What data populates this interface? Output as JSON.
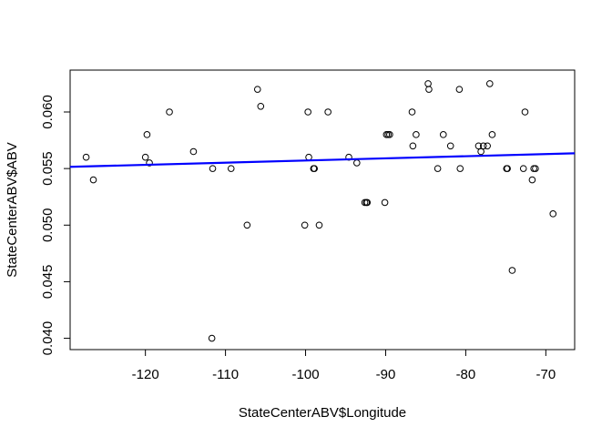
{
  "chart_data": {
    "type": "scatter",
    "title": "",
    "xlabel": "StateCenterABV$Longitude",
    "ylabel": "StateCenterABV$ABV",
    "xlim": [
      -129.4,
      -66.4
    ],
    "ylim": [
      0.039,
      0.0637
    ],
    "x_ticks": [
      -120,
      -110,
      -100,
      -90,
      -80,
      -70
    ],
    "x_tick_labels": [
      "-120",
      "-110",
      "-100",
      "-90",
      "-80",
      "-70"
    ],
    "y_ticks": [
      0.04,
      0.045,
      0.05,
      0.055,
      0.06
    ],
    "y_tick_labels": [
      "0.040",
      "0.045",
      "0.050",
      "0.055",
      "0.060"
    ],
    "grid": false,
    "legend": "none",
    "point_color": "#000000",
    "fit_line": {
      "color": "#0000ff",
      "x": [
        -129.4,
        -66.4
      ],
      "y": [
        0.05515,
        0.05635
      ]
    },
    "series": [
      {
        "x": [
          -127.4,
          -126.5,
          -120.0,
          -119.8,
          -119.5,
          -117.0,
          -114.0,
          -111.7,
          -111.6,
          -109.3,
          -107.3,
          -106.0,
          -105.6,
          -100.1,
          -99.7,
          -99.6,
          -99.0,
          -98.9,
          -98.3,
          -97.2,
          -94.6,
          -93.6,
          -92.6,
          -92.4,
          -92.3,
          -90.1,
          -89.9,
          -89.7,
          -89.5,
          -86.7,
          -86.6,
          -86.2,
          -84.7,
          -84.6,
          -83.5,
          -82.8,
          -81.9,
          -80.8,
          -80.7,
          -78.4,
          -78.1,
          -77.8,
          -77.3,
          -77.0,
          -76.7,
          -74.9,
          -74.8,
          -74.2,
          -72.8,
          -72.6,
          -71.7,
          -71.5,
          -71.3,
          -69.1
        ],
        "y": [
          0.056,
          0.054,
          0.056,
          0.058,
          0.0555,
          0.06,
          0.0565,
          0.04,
          0.055,
          0.055,
          0.05,
          0.062,
          0.0605,
          0.05,
          0.06,
          0.056,
          0.055,
          0.055,
          0.05,
          0.06,
          0.056,
          0.0555,
          0.052,
          0.052,
          0.052,
          0.052,
          0.058,
          0.058,
          0.058,
          0.06,
          0.057,
          0.058,
          0.0625,
          0.062,
          0.055,
          0.058,
          0.057,
          0.062,
          0.055,
          0.057,
          0.0565,
          0.057,
          0.057,
          0.0625,
          0.058,
          0.055,
          0.055,
          0.046,
          0.055,
          0.06,
          0.054,
          0.055,
          0.055,
          0.051
        ]
      }
    ]
  }
}
